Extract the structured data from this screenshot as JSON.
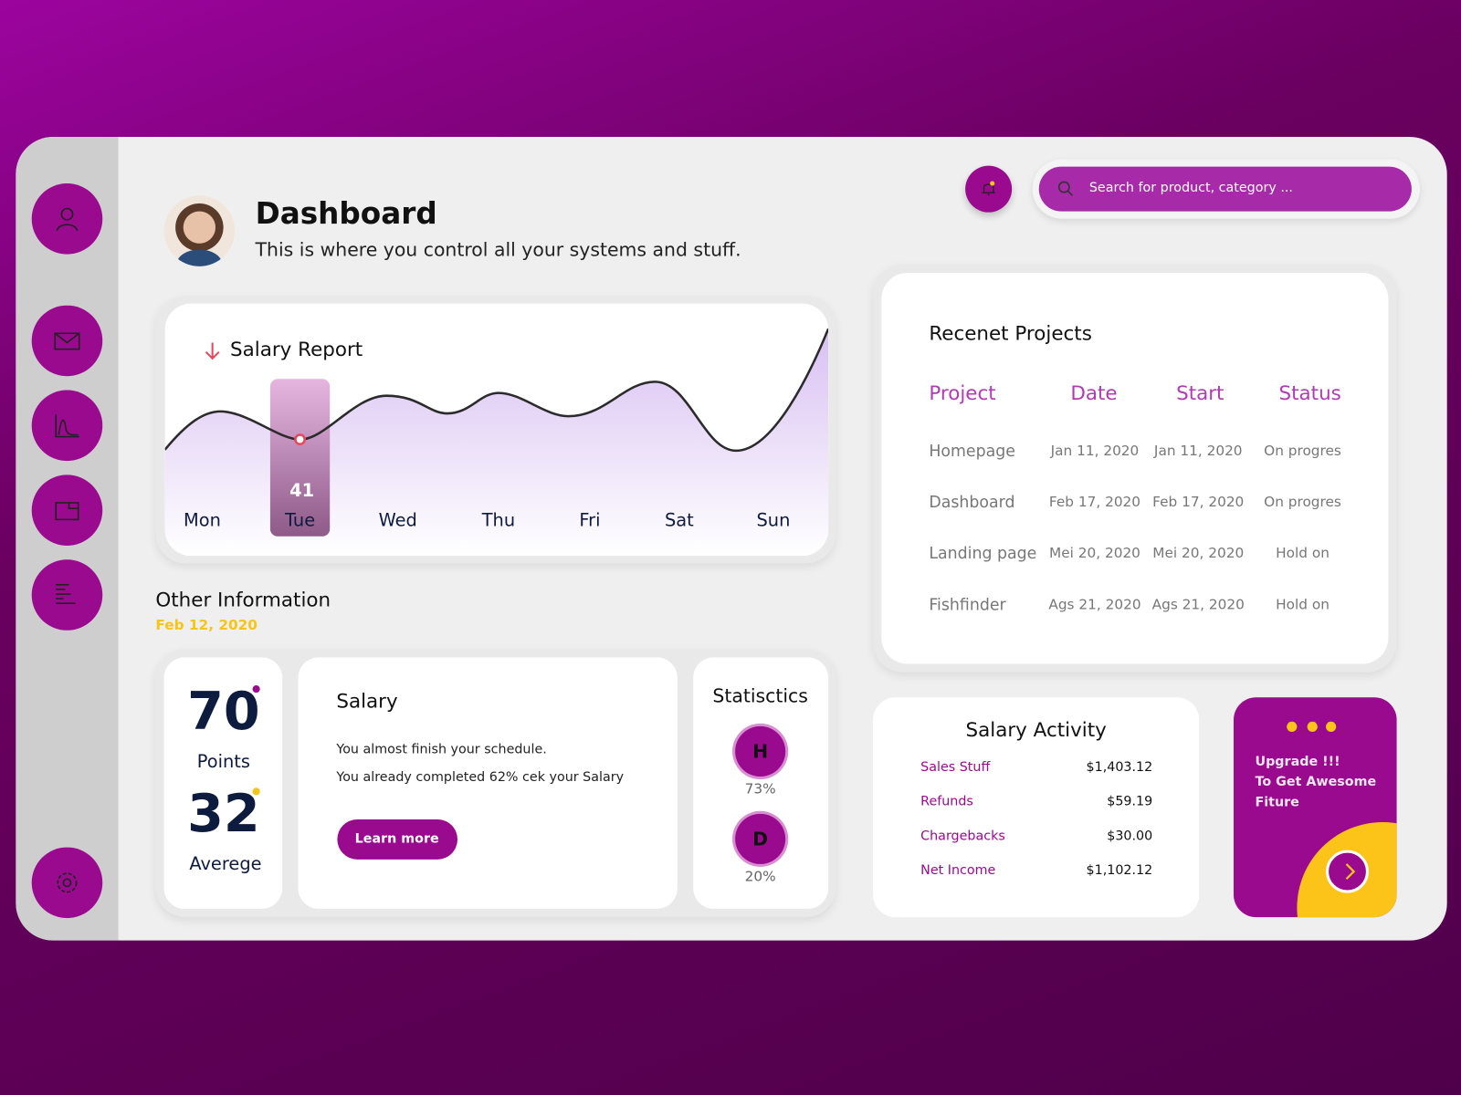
{
  "header": {
    "title": "Dashboard",
    "subtitle": "This is where you control all your systems and stuff."
  },
  "search": {
    "placeholder": "Search for product, category ..."
  },
  "salary_report": {
    "title": "Salary Report",
    "categories": [
      "Mon",
      "Tue",
      "Wed",
      "Thu",
      "Fri",
      "Sat",
      "Sun"
    ],
    "selected_value": 41
  },
  "other_information": {
    "title": "Other Information",
    "date": "Feb 12, 2020"
  },
  "points": {
    "value": 70,
    "label": "Points"
  },
  "average": {
    "value": 32,
    "label": "Averege"
  },
  "salary": {
    "title": "Salary",
    "lines": [
      "You almost finish your schedule.",
      "You already completed 62% cek your Salary"
    ],
    "button": "Learn more"
  },
  "statistics": {
    "title": "Statisctics",
    "items": [
      {
        "letter": "H",
        "value": "73%"
      },
      {
        "letter": "D",
        "value": "20%"
      }
    ]
  },
  "recent_projects": {
    "title": "Recenet Projects",
    "columns": [
      "Project",
      "Date",
      "Start",
      "Status"
    ],
    "rows": [
      [
        "Homepage",
        "Jan 11, 2020",
        "Jan 11, 2020",
        "On progres"
      ],
      [
        "Dashboard",
        "Feb 17, 2020",
        "Feb 17, 2020",
        "On progres"
      ],
      [
        "Landing page",
        "Mei 20, 2020",
        "Mei 20, 2020",
        "Hold on"
      ],
      [
        "Fishfinder",
        "Ags 21, 2020",
        "Ags 21, 2020",
        "Hold on"
      ]
    ]
  },
  "salary_activity": {
    "title": "Salary Activity",
    "rows": [
      [
        "Sales Stuff",
        "$1,403.12"
      ],
      [
        "Refunds",
        "$59.19"
      ],
      [
        "Chargebacks",
        "$30.00"
      ],
      [
        "Net Income",
        "$1,102.12"
      ]
    ]
  },
  "upgrade": {
    "lines": [
      "Upgrade !!!",
      "To Get Awesome",
      "Fiture"
    ]
  }
}
